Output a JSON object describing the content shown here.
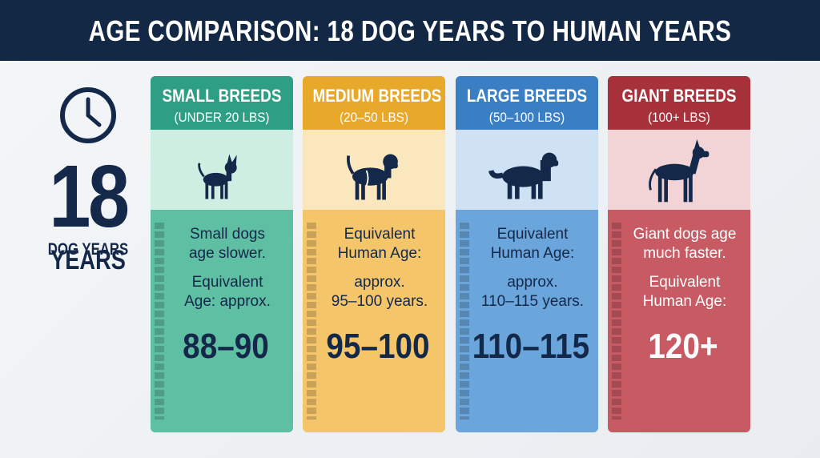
{
  "header": {
    "title": "AGE COMPARISON: 18 DOG YEARS TO HUMAN YEARS"
  },
  "dog_age": {
    "number": "18",
    "unit": "DOG YEARS",
    "unit_shadow": "YEARS"
  },
  "cards": [
    {
      "title": "SMALL BREEDS",
      "subtitle": "(UNDER 20 LBS)",
      "paragraphs": [
        [
          "Small dogs",
          "age slower."
        ],
        [
          "Equivalent",
          "Age: approx."
        ]
      ],
      "result": "88–90"
    },
    {
      "title": "MEDIUM BREEDS",
      "subtitle": "(20–50 LBS)",
      "paragraphs": [
        [
          "Equivalent",
          "Human Age:"
        ],
        [
          "approx.",
          "95–100 years."
        ]
      ],
      "result": "95–100"
    },
    {
      "title": "LARGE BREEDS",
      "subtitle": "(50–100 LBS)",
      "paragraphs": [
        [
          "Equivalent",
          "Human Age:"
        ],
        [
          "approx.",
          "110–115 years."
        ]
      ],
      "result": "110–115"
    },
    {
      "title": "GIANT BREEDS",
      "subtitle": "(100+ LBS)",
      "paragraphs": [
        [
          "Giant dogs age",
          "much faster."
        ],
        [
          "Equivalent",
          "Human Age:"
        ]
      ],
      "result": "120+"
    }
  ]
}
